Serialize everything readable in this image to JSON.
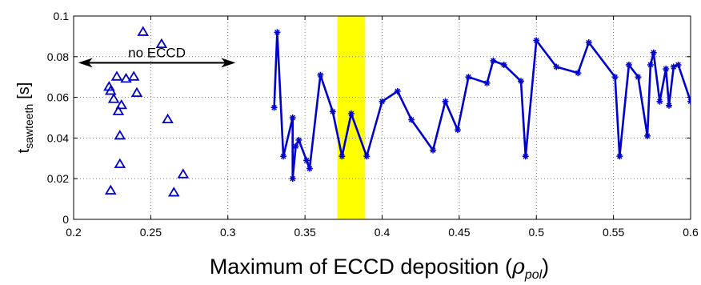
{
  "chart_data": {
    "type": "scatter",
    "xlabel_main": "Maximum of ECCD deposition (",
    "xlabel_symbol": "ρ",
    "xlabel_sub": "pol",
    "xlabel_close": ")",
    "ylabel_main": "t",
    "ylabel_sub": "sawteeth",
    "ylabel_unit": "[s]",
    "xlim": [
      0.2,
      0.6
    ],
    "ylim": [
      0,
      0.1
    ],
    "xticks": [
      0.2,
      0.25,
      0.3,
      0.35,
      0.4,
      0.45,
      0.5,
      0.55,
      0.6
    ],
    "xtick_labels": [
      "0.2",
      "0.25",
      "0.3",
      "0.35",
      "0.4",
      "0.45",
      "0.5",
      "0.55",
      "0.6"
    ],
    "yticks": [
      0,
      0.02,
      0.04,
      0.06,
      0.08,
      0.1
    ],
    "ytick_labels": [
      "0",
      "0.02",
      "0.04",
      "0.06",
      "0.08",
      "0.1"
    ],
    "grid": true,
    "annotation": {
      "text": "no ECCD",
      "x_range": [
        0.203,
        0.305
      ],
      "y": 0.077
    },
    "highlight_band": {
      "x_range": [
        0.371,
        0.389
      ],
      "color": "#ffff00"
    },
    "series": [
      {
        "marker": "triangle",
        "color": "#0000cc",
        "connected": false,
        "points": [
          [
            0.245,
            0.092
          ],
          [
            0.257,
            0.086
          ],
          [
            0.228,
            0.07
          ],
          [
            0.234,
            0.069
          ],
          [
            0.239,
            0.07
          ],
          [
            0.223,
            0.065
          ],
          [
            0.224,
            0.063
          ],
          [
            0.241,
            0.062
          ],
          [
            0.226,
            0.059
          ],
          [
            0.231,
            0.056
          ],
          [
            0.229,
            0.053
          ],
          [
            0.261,
            0.049
          ],
          [
            0.23,
            0.041
          ],
          [
            0.23,
            0.027
          ],
          [
            0.271,
            0.022
          ],
          [
            0.224,
            0.014
          ],
          [
            0.265,
            0.013
          ]
        ]
      },
      {
        "marker": "asterisk",
        "color": "#0000cc",
        "connected": true,
        "points": [
          [
            0.33,
            0.055
          ],
          [
            0.332,
            0.092
          ],
          [
            0.336,
            0.031
          ],
          [
            0.342,
            0.05
          ],
          [
            0.342,
            0.02
          ],
          [
            0.344,
            0.036
          ],
          [
            0.346,
            0.039
          ],
          [
            0.351,
            0.029
          ],
          [
            0.353,
            0.025
          ],
          [
            0.36,
            0.071
          ],
          [
            0.368,
            0.053
          ],
          [
            0.374,
            0.031
          ],
          [
            0.38,
            0.052
          ],
          [
            0.39,
            0.031
          ],
          [
            0.4,
            0.058
          ],
          [
            0.41,
            0.063
          ],
          [
            0.419,
            0.049
          ],
          [
            0.433,
            0.034
          ],
          [
            0.441,
            0.058
          ],
          [
            0.449,
            0.044
          ],
          [
            0.456,
            0.07
          ],
          [
            0.468,
            0.067
          ],
          [
            0.472,
            0.078
          ],
          [
            0.479,
            0.076
          ],
          [
            0.49,
            0.068
          ],
          [
            0.493,
            0.031
          ],
          [
            0.5,
            0.088
          ],
          [
            0.513,
            0.075
          ],
          [
            0.527,
            0.072
          ],
          [
            0.534,
            0.087
          ],
          [
            0.551,
            0.07
          ],
          [
            0.554,
            0.031
          ],
          [
            0.56,
            0.076
          ],
          [
            0.566,
            0.07
          ],
          [
            0.572,
            0.041
          ],
          [
            0.574,
            0.076
          ],
          [
            0.576,
            0.082
          ],
          [
            0.58,
            0.058
          ],
          [
            0.584,
            0.074
          ],
          [
            0.586,
            0.056
          ],
          [
            0.589,
            0.075
          ],
          [
            0.592,
            0.076
          ],
          [
            0.6,
            0.058
          ]
        ]
      }
    ]
  }
}
